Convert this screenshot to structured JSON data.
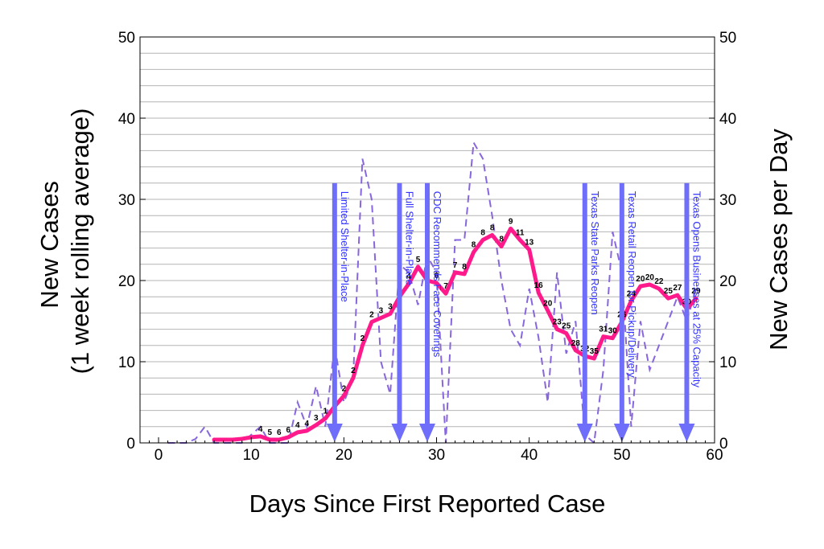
{
  "chart_data": {
    "type": "line",
    "xlabel": "Days Since First Reported Case",
    "ylabel_left": [
      "New Cases",
      "(1 week rolling average)"
    ],
    "ylabel_right": "New Cases per Day",
    "xlim": [
      -2,
      60
    ],
    "ylim": [
      0,
      50
    ],
    "xticks": [
      0,
      10,
      20,
      30,
      40,
      50,
      60
    ],
    "yticks": [
      0,
      10,
      20,
      30,
      40,
      50
    ],
    "grid": "horizontal",
    "colors": {
      "rolling": "#ff1a8c",
      "daily": "#8866dd",
      "event": "#6e6efa",
      "event_text": "#3333ff"
    },
    "series": [
      {
        "id": "rolling",
        "style": "solid",
        "x": [
          6,
          7,
          8,
          9,
          10,
          11,
          12,
          13,
          14,
          15,
          16,
          17,
          18,
          19,
          20,
          21,
          22,
          23,
          24,
          25,
          26,
          27,
          28,
          29,
          30,
          31,
          32,
          33,
          34,
          35,
          36,
          37,
          38,
          39,
          40,
          41,
          42,
          43,
          44,
          45,
          46,
          47,
          48,
          49,
          50,
          51,
          52,
          53,
          54,
          55,
          56,
          57,
          58
        ],
        "y": [
          0.4,
          0.4,
          0.4,
          0.5,
          0.7,
          0.8,
          0.4,
          0.4,
          0.7,
          1.3,
          1.5,
          2.2,
          3.0,
          4.5,
          5.8,
          8.0,
          12.0,
          14.9,
          15.4,
          15.9,
          18.0,
          19.6,
          21.7,
          20.0,
          19.7,
          18.4,
          21.0,
          20.8,
          23.5,
          25.0,
          25.6,
          24.2,
          26.4,
          25.0,
          23.8,
          18.5,
          16.3,
          14.0,
          13.5,
          11.4,
          10.7,
          10.4,
          13.1,
          12.9,
          14.9,
          17.5,
          19.3,
          19.5,
          19.0,
          17.8,
          18.2,
          16.5,
          17.8
        ]
      },
      {
        "id": "daily",
        "style": "dashed",
        "x": [
          1,
          2,
          3,
          4,
          5,
          6,
          7,
          8,
          9,
          10,
          11,
          12,
          13,
          14,
          15,
          16,
          17,
          18,
          19,
          20,
          21,
          22,
          23,
          24,
          25,
          26,
          27,
          28,
          29,
          30,
          31,
          32,
          33,
          34,
          35,
          36,
          37,
          38,
          39,
          40,
          41,
          42,
          43,
          44,
          45,
          46,
          47,
          48,
          49,
          50,
          51,
          52,
          53,
          54,
          55,
          56,
          57,
          58
        ],
        "y": [
          0,
          0,
          0,
          0.5,
          2,
          0,
          0,
          0,
          0,
          1,
          2,
          0,
          0,
          0,
          5,
          2,
          7,
          2,
          12,
          5,
          8,
          35,
          30,
          10,
          6,
          22,
          21,
          17,
          23,
          21,
          0,
          25,
          25,
          37,
          35,
          28,
          20,
          14,
          12,
          19,
          13,
          5,
          21,
          11,
          15,
          1,
          0,
          9,
          26,
          21,
          2,
          15,
          9,
          12,
          15,
          18,
          15,
          19
        ]
      }
    ],
    "point_labels": [
      {
        "x": 11,
        "y": 0.8,
        "t": "4"
      },
      {
        "x": 12,
        "y": 0.4,
        "t": "5"
      },
      {
        "x": 13,
        "y": 0.4,
        "t": "6"
      },
      {
        "x": 14,
        "y": 0.7,
        "t": "6"
      },
      {
        "x": 15,
        "y": 1.3,
        "t": "4"
      },
      {
        "x": 16,
        "y": 1.5,
        "t": "4"
      },
      {
        "x": 17,
        "y": 2.2,
        "t": "3"
      },
      {
        "x": 18,
        "y": 3.0,
        "t": "1"
      },
      {
        "x": 19,
        "y": 4.5,
        "t": "2"
      },
      {
        "x": 20,
        "y": 5.8,
        "t": "2"
      },
      {
        "x": 21,
        "y": 8.0,
        "t": "2"
      },
      {
        "x": 22,
        "y": 12.0,
        "t": "2"
      },
      {
        "x": 23,
        "y": 14.9,
        "t": "2"
      },
      {
        "x": 24,
        "y": 15.4,
        "t": "3"
      },
      {
        "x": 25,
        "y": 15.9,
        "t": "3"
      },
      {
        "x": 26,
        "y": 18.0,
        "t": "4"
      },
      {
        "x": 27,
        "y": 19.6,
        "t": "4"
      },
      {
        "x": 28,
        "y": 21.7,
        "t": "5"
      },
      {
        "x": 29,
        "y": 20.0,
        "t": "6"
      },
      {
        "x": 30,
        "y": 19.7,
        "t": "6"
      },
      {
        "x": 31,
        "y": 18.4,
        "t": "7"
      },
      {
        "x": 32,
        "y": 21.0,
        "t": "7"
      },
      {
        "x": 33,
        "y": 20.8,
        "t": "8"
      },
      {
        "x": 34,
        "y": 23.5,
        "t": "8"
      },
      {
        "x": 35,
        "y": 25.0,
        "t": "8"
      },
      {
        "x": 36,
        "y": 25.6,
        "t": "8"
      },
      {
        "x": 37,
        "y": 24.2,
        "t": "8"
      },
      {
        "x": 38,
        "y": 26.4,
        "t": "9"
      },
      {
        "x": 39,
        "y": 25.0,
        "t": "11"
      },
      {
        "x": 40,
        "y": 23.8,
        "t": "13"
      },
      {
        "x": 41,
        "y": 18.5,
        "t": "16"
      },
      {
        "x": 42,
        "y": 16.3,
        "t": "20"
      },
      {
        "x": 43,
        "y": 14.0,
        "t": "23"
      },
      {
        "x": 44,
        "y": 13.5,
        "t": "25"
      },
      {
        "x": 45,
        "y": 11.4,
        "t": "28"
      },
      {
        "x": 46,
        "y": 10.7,
        "t": "32"
      },
      {
        "x": 47,
        "y": 10.4,
        "t": "35"
      },
      {
        "x": 48,
        "y": 13.1,
        "t": "31"
      },
      {
        "x": 49,
        "y": 12.9,
        "t": "30"
      },
      {
        "x": 50,
        "y": 14.9,
        "t": "26"
      },
      {
        "x": 51,
        "y": 17.5,
        "t": "24"
      },
      {
        "x": 52,
        "y": 19.3,
        "t": "20"
      },
      {
        "x": 53,
        "y": 19.5,
        "t": "20"
      },
      {
        "x": 54,
        "y": 19.0,
        "t": "22"
      },
      {
        "x": 55,
        "y": 17.8,
        "t": "25"
      },
      {
        "x": 56,
        "y": 18.2,
        "t": "27"
      },
      {
        "x": 57,
        "y": 16.5,
        "t": "30"
      },
      {
        "x": 58,
        "y": 17.8,
        "t": "29"
      }
    ],
    "events": [
      {
        "x": 19,
        "label": "Limited Shelter-in-Place"
      },
      {
        "x": 26,
        "label": "Full Shelter-in-Place"
      },
      {
        "x": 29,
        "label": "CDC Recommends Face Coverings"
      },
      {
        "x": 46,
        "label": "Texas State Parks Reopen"
      },
      {
        "x": 50,
        "label": "Texas Retail Reopen for Pickup/Delivery"
      },
      {
        "x": 57,
        "label": "Texas Opens Businesses at 25% Capacity"
      }
    ],
    "event_top_y": 32
  }
}
